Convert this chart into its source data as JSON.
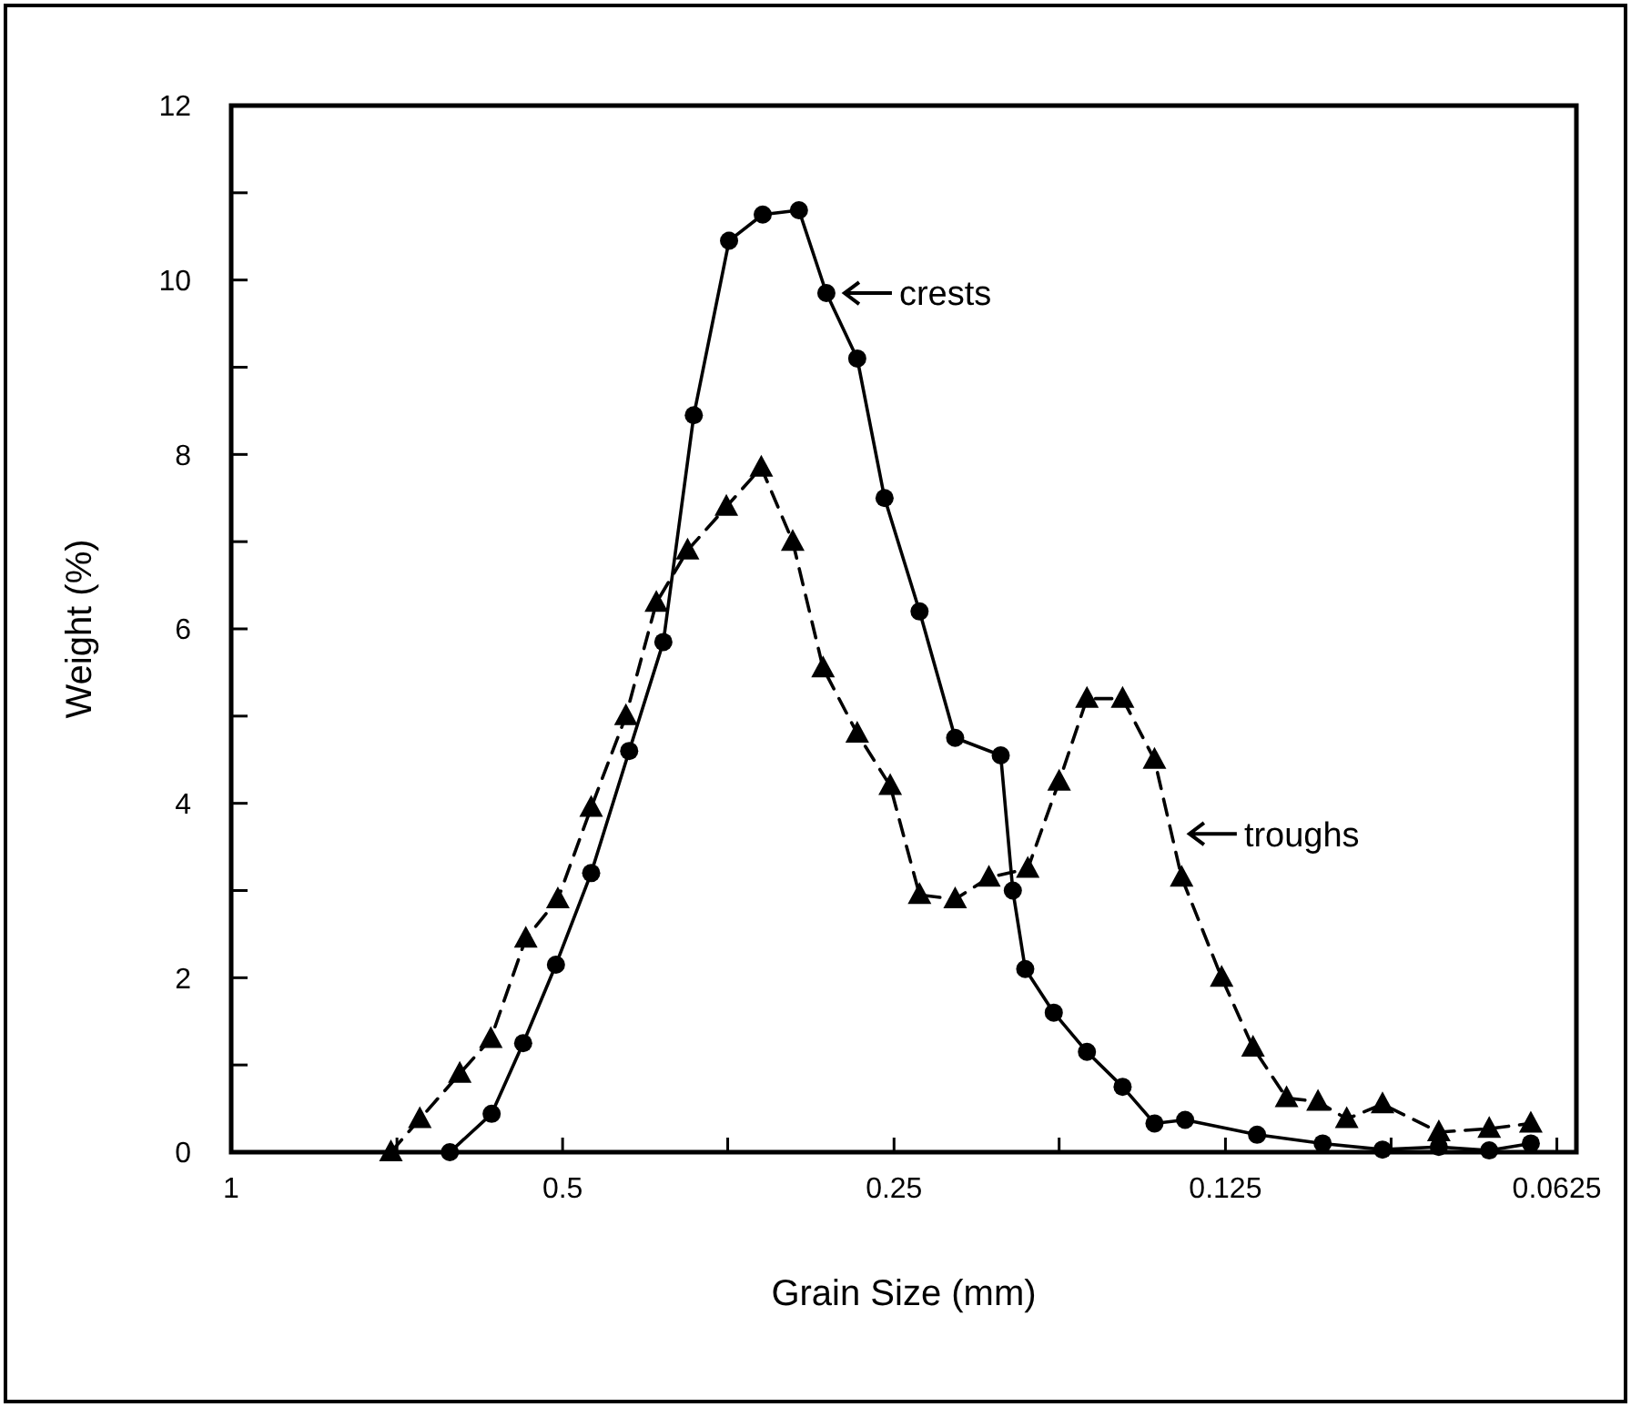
{
  "chart_data": {
    "type": "line",
    "xlabel": "Grain Size (mm)",
    "ylabel": "Weight (%)",
    "log": "x",
    "xlim": [
      1,
      0.06
    ],
    "ylim": [
      0,
      12
    ],
    "xticks": [
      1,
      {
        "value": 0.707,
        "label": null
      },
      0.5,
      {
        "value": 0.354,
        "label": null
      },
      0.25,
      {
        "value": 0.177,
        "label": null
      },
      0.125,
      {
        "value": 0.0884,
        "label": null
      },
      0.0625
    ],
    "yticks": [
      0,
      {
        "value": 1,
        "label": null
      },
      2,
      {
        "value": 3,
        "label": null
      },
      4,
      {
        "value": 5,
        "label": null
      },
      6,
      {
        "value": 7,
        "label": null
      },
      8,
      {
        "value": 9,
        "label": null
      },
      10,
      {
        "value": 11,
        "label": null
      },
      12
    ],
    "grid": false,
    "series": [
      {
        "color": "#000000",
        "marker": "circle",
        "line_style": "solid",
        "x": [
          0.633,
          0.58,
          0.543,
          0.507,
          0.471,
          0.435,
          0.405,
          0.38,
          0.353,
          0.329,
          0.305,
          0.288,
          0.27,
          0.255,
          0.237,
          0.22,
          0.2,
          0.195,
          0.19,
          0.179,
          0.167,
          0.155,
          0.145,
          0.136,
          0.117,
          0.102,
          0.09,
          0.08,
          0.072,
          0.066
        ],
        "values": [
          0,
          0.44,
          1.25,
          2.15,
          3.2,
          4.6,
          5.85,
          8.45,
          10.45,
          10.75,
          10.8,
          9.85,
          9.1,
          7.5,
          6.2,
          4.75,
          4.55,
          3.0,
          2.1,
          1.6,
          1.15,
          0.75,
          0.33,
          0.37,
          0.2,
          0.1,
          0.03,
          0.06,
          0.02,
          0.1
        ]
      },
      {
        "color": "#000000",
        "marker": "triangle",
        "line_style": "dashed",
        "x": [
          0.716,
          0.674,
          0.62,
          0.581,
          0.54,
          0.505,
          0.471,
          0.438,
          0.411,
          0.385,
          0.355,
          0.33,
          0.309,
          0.29,
          0.27,
          0.252,
          0.237,
          0.22,
          0.205,
          0.189,
          0.177,
          0.167,
          0.155,
          0.145,
          0.137,
          0.126,
          0.118,
          0.11,
          0.103,
          0.097,
          0.09,
          0.08,
          0.072,
          0.066
        ],
        "values": [
          0,
          0.38,
          0.9,
          1.3,
          2.45,
          2.9,
          3.95,
          5.0,
          6.3,
          6.9,
          7.4,
          7.85,
          7.0,
          5.55,
          4.8,
          4.2,
          2.95,
          2.9,
          3.15,
          3.25,
          4.25,
          5.2,
          5.2,
          4.5,
          3.15,
          2.0,
          1.2,
          0.62,
          0.58,
          0.38,
          0.55,
          0.23,
          0.27,
          0.33
        ]
      }
    ],
    "annotations": [
      {
        "text": "crests",
        "x": 0.288,
        "y": 9.85
      },
      {
        "text": "troughs",
        "x": 0.14,
        "y": 3.65
      }
    ]
  }
}
